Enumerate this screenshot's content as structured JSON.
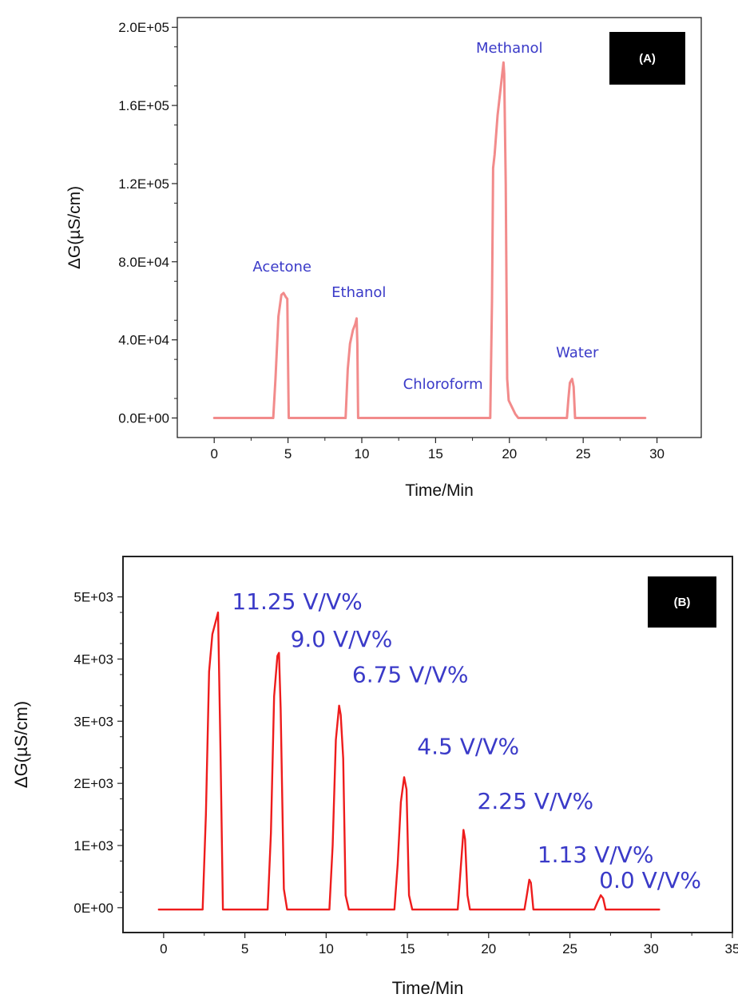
{
  "chart_data": [
    {
      "type": "line",
      "panel_label": "(A)",
      "xlabel": "Time/Min",
      "ylabel": "ΔG(µS/cm)",
      "xlim": [
        -2.5,
        33
      ],
      "ylim": [
        -10000,
        205000
      ],
      "x_ticks": [
        0,
        5,
        10,
        15,
        20,
        25,
        30
      ],
      "x_tick_labels": [
        "0",
        "5",
        "10",
        "15",
        "20",
        "25",
        "30"
      ],
      "y_ticks": [
        0,
        40000,
        80000,
        120000,
        160000,
        200000
      ],
      "y_tick_labels": [
        "0.0E+00",
        "4.0E+04",
        "8.0E+04",
        "1.2E+05",
        "1.6E+05",
        "2.0E+05"
      ],
      "line_color": "#f28b8b",
      "annotation_color": "#3a3ac8",
      "series": [
        {
          "x": [
            0,
            4.0,
            4.15,
            4.35,
            4.55,
            4.7,
            4.85,
            4.95,
            5.0,
            5.05,
            8.9,
            9.05,
            9.2,
            9.4,
            9.55,
            9.65,
            9.7,
            9.75,
            18.7,
            18.82,
            18.9,
            19.0,
            19.2,
            19.5,
            19.6,
            19.65,
            19.75,
            19.85,
            19.95,
            20.4,
            20.6,
            23.9,
            24.0,
            24.1,
            24.25,
            24.35,
            24.45,
            29.2
          ],
          "y": [
            0,
            0,
            20000,
            52000,
            63000,
            64000,
            62000,
            61000,
            30000,
            0,
            0,
            25000,
            38000,
            45000,
            48000,
            51000,
            38000,
            0,
            0,
            60000,
            128000,
            135000,
            155000,
            175000,
            182000,
            176000,
            120000,
            20000,
            9000,
            2000,
            0,
            0,
            10000,
            18000,
            20000,
            16000,
            0,
            0
          ]
        }
      ],
      "annotations": [
        {
          "text": "Acetone",
          "x": 4.6,
          "y": 75000
        },
        {
          "text": "Ethanol",
          "x": 9.8,
          "y": 62000
        },
        {
          "text": "Chloroform",
          "x": 15.5,
          "y": 15000
        },
        {
          "text": "Methanol",
          "x": 20.0,
          "y": 187000
        },
        {
          "text": "Water",
          "x": 24.6,
          "y": 31000
        }
      ]
    },
    {
      "type": "line",
      "panel_label": "(B)",
      "xlabel": "Time/Min",
      "ylabel": "ΔG(µS/cm)",
      "xlim": [
        -2.5,
        35
      ],
      "ylim": [
        -400,
        5650
      ],
      "x_ticks": [
        0,
        5,
        10,
        15,
        20,
        25,
        30,
        35
      ],
      "x_tick_labels": [
        "0",
        "5",
        "10",
        "15",
        "20",
        "25",
        "30",
        "35"
      ],
      "y_ticks": [
        0,
        1000,
        2000,
        3000,
        4000,
        5000
      ],
      "y_tick_labels": [
        "0E+00",
        "1E+03",
        "2E+03",
        "3E+03",
        "4E+03",
        "5E+03"
      ],
      "line_color": "#ee1c1c",
      "annotation_color": "#3a3ac8",
      "series": [
        {
          "x": [
            -0.3,
            2.4,
            2.6,
            2.8,
            3.0,
            3.2,
            3.35,
            3.5,
            3.65,
            6.4,
            6.6,
            6.8,
            7.0,
            7.1,
            7.2,
            7.4,
            7.6,
            10.2,
            10.4,
            10.6,
            10.8,
            10.9,
            11.05,
            11.2,
            11.4,
            14.2,
            14.4,
            14.6,
            14.8,
            14.95,
            15.1,
            15.3,
            18.1,
            18.3,
            18.45,
            18.55,
            18.7,
            18.85,
            22.2,
            22.35,
            22.5,
            22.6,
            22.75,
            26.5,
            26.7,
            26.9,
            27.05,
            27.2,
            30.5
          ],
          "y": [
            -30,
            -30,
            1500,
            3800,
            4400,
            4600,
            4750,
            2500,
            -30,
            -30,
            1200,
            3400,
            4050,
            4100,
            3200,
            300,
            -30,
            -30,
            1000,
            2700,
            3250,
            3100,
            2400,
            200,
            -30,
            -30,
            700,
            1700,
            2100,
            1900,
            200,
            -30,
            -30,
            700,
            1250,
            1100,
            200,
            -30,
            -30,
            200,
            450,
            400,
            -30,
            -30,
            90,
            200,
            150,
            -30,
            -30
          ]
        }
      ],
      "annotations": [
        {
          "text": "11.25 V/V%",
          "x": 4.2,
          "y": 4800
        },
        {
          "text": "9.0 V/V%",
          "x": 7.8,
          "y": 4200
        },
        {
          "text": "6.75 V/V%",
          "x": 11.6,
          "y": 3630
        },
        {
          "text": "4.5 V/V%",
          "x": 15.6,
          "y": 2470
        },
        {
          "text": "2.25 V/V%",
          "x": 19.3,
          "y": 1590
        },
        {
          "text": "1.13 V/V%",
          "x": 23.0,
          "y": 730
        },
        {
          "text": "0.0 V/V%",
          "x": 26.8,
          "y": 320
        }
      ]
    }
  ]
}
